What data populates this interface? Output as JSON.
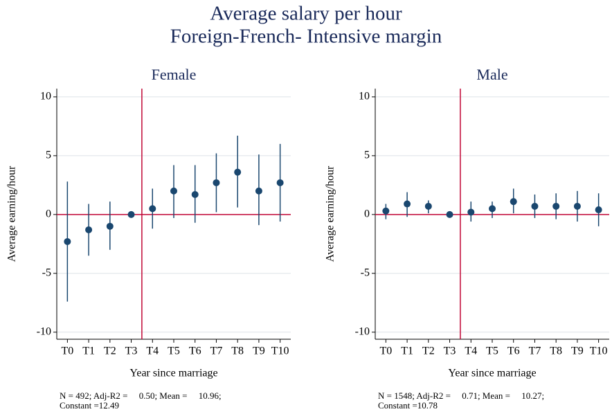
{
  "title": [
    "Average salary per hour",
    "Foreign-French- Intensive margin"
  ],
  "chart_data": [
    {
      "type": "coefplot",
      "title": "Female",
      "x_label": "Year since marriage",
      "y_label": "Average earning/hour",
      "categories": [
        "T0",
        "T1",
        "T2",
        "T3",
        "T4",
        "T5",
        "T6",
        "T7",
        "T8",
        "T9",
        "T10"
      ],
      "values": [
        -2.3,
        -1.3,
        -1.0,
        0,
        0.5,
        2.0,
        1.7,
        2.7,
        3.6,
        2.0,
        2.7
      ],
      "lower": [
        -7.4,
        -3.5,
        -3.0,
        null,
        -1.2,
        -0.3,
        -0.7,
        0.2,
        0.6,
        -0.9,
        -0.6
      ],
      "upper": [
        2.8,
        0.9,
        1.1,
        null,
        2.2,
        4.2,
        4.2,
        5.2,
        6.7,
        5.1,
        6.0
      ],
      "color": "#1a476f",
      "ref_color": "#c10534",
      "hline": 0,
      "vline": 3.5,
      "ylim": [
        -10.6,
        10.7
      ],
      "yticks": [
        -10,
        -5,
        0,
        5,
        10
      ],
      "grid": true,
      "notes": [
        "N = 492; Adj-R2 =     0.50; Mean =     10.96;",
        "Constant =12.49"
      ]
    },
    {
      "type": "coefplot",
      "title": "Male",
      "x_label": "Year since marriage",
      "y_label": "Average earning/hour",
      "categories": [
        "T0",
        "T1",
        "T2",
        "T3",
        "T4",
        "T5",
        "T6",
        "T7",
        "T8",
        "T9",
        "T10"
      ],
      "values": [
        0.3,
        0.9,
        0.7,
        0,
        0.2,
        0.5,
        1.1,
        0.7,
        0.7,
        0.7,
        0.4
      ],
      "lower": [
        -0.4,
        -0.2,
        0.1,
        null,
        -0.6,
        -0.3,
        0.1,
        -0.3,
        -0.4,
        -0.6,
        -1.0
      ],
      "upper": [
        0.9,
        1.9,
        1.2,
        null,
        1.1,
        1.1,
        2.2,
        1.7,
        1.8,
        2.0,
        1.8
      ],
      "color": "#1a476f",
      "ref_color": "#c10534",
      "hline": 0,
      "vline": 3.5,
      "ylim": [
        -10.6,
        10.7
      ],
      "yticks": [
        -10,
        -5,
        0,
        5,
        10
      ],
      "grid": true,
      "notes": [
        "N = 1548; Adj-R2 =     0.71; Mean =     10.27;",
        "Constant =10.78"
      ]
    }
  ]
}
